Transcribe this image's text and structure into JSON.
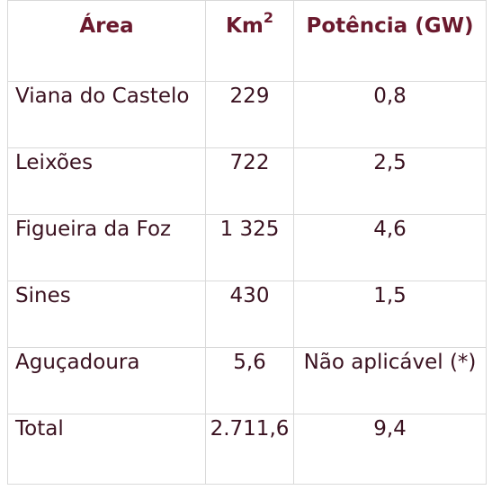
{
  "table": {
    "headers": {
      "area": "Área",
      "km_base": "Km",
      "km_sup": "2",
      "power": "Potência (GW)"
    },
    "rows": [
      {
        "area": "Viana do Castelo",
        "km2": "229",
        "power": "0,8"
      },
      {
        "area": "Leixões",
        "km2": "722",
        "power": "2,5"
      },
      {
        "area": "Figueira da Foz",
        "km2": "1 325",
        "power": "4,6"
      },
      {
        "area": "Sines",
        "km2": "430",
        "power": "1,5"
      },
      {
        "area": "Aguçadoura",
        "km2": "5,6",
        "power": "Não aplicável (*)"
      },
      {
        "area": "Total",
        "km2": "2.711,6",
        "power": "9,4"
      }
    ]
  },
  "colors": {
    "header_text": "#6b1a2e",
    "body_text": "#3a1220",
    "grid": "#d9d9d9"
  }
}
